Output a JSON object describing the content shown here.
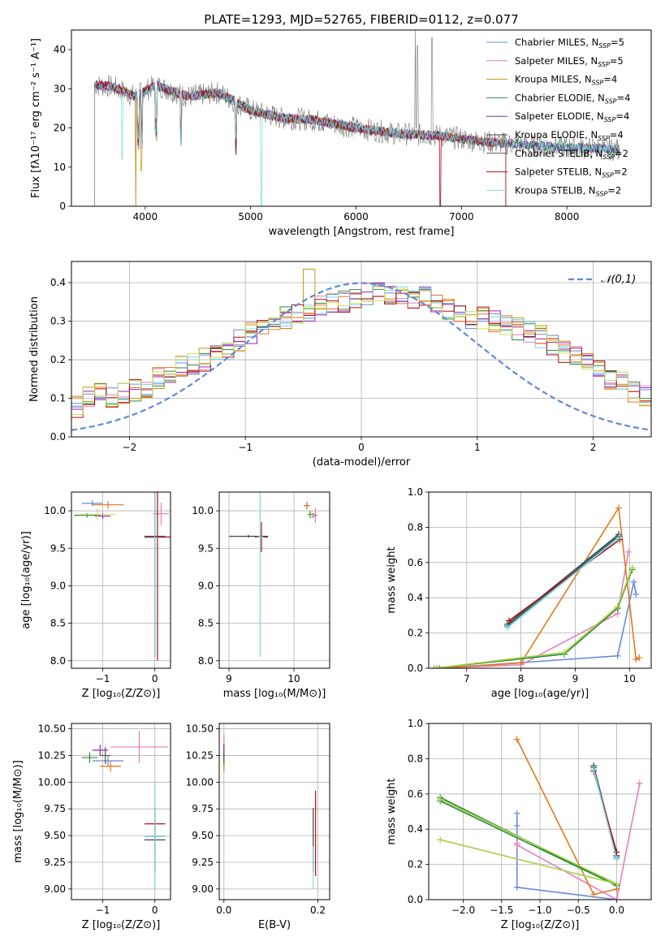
{
  "figure_title": "PLATE=1293, MJD=52765, FIBERID=0112, z=0.077",
  "model_colors": [
    "#6688dd",
    "#e67fbf",
    "#c7950a",
    "#2e8b3e",
    "#a020b0",
    "#444444",
    "#555555",
    "#b01010",
    "#7fd6e6"
  ],
  "legend_models": [
    {
      "name": "Chabrier MILES",
      "nssp": "5",
      "color": "#6688dd"
    },
    {
      "name": "Salpeter MILES",
      "nssp": "5",
      "color": "#e67fbf"
    },
    {
      "name": "Kroupa MILES",
      "nssp": "4",
      "color": "#c7950a"
    },
    {
      "name": "Chabrier ELODIE",
      "nssp": "4",
      "color": "#2e8b3e"
    },
    {
      "name": "Salpeter ELODIE",
      "nssp": "4",
      "color": "#a020b0"
    },
    {
      "name": "Kroupa ELODIE",
      "nssp": "4",
      "color": "#444444"
    },
    {
      "name": "Chabrier STELIB",
      "nssp": "2",
      "color": "#555555"
    },
    {
      "name": "Salpeter STELIB",
      "nssp": "2",
      "color": "#b01010"
    },
    {
      "name": "Kroupa STELIB",
      "nssp": "2",
      "color": "#7fd6e6"
    }
  ],
  "nssp_prefix": "N",
  "nssp_sub": "SSP",
  "chart_data": [
    {
      "id": "spectrum",
      "type": "line",
      "xlabel": "wavelength [Angstrom, rest frame]",
      "ylabel": "Flux [fλ10⁻¹⁷ erg cm⁻² s⁻¹ A⁻¹]",
      "xlim": [
        3300,
        8800
      ],
      "ylim": [
        0,
        45
      ],
      "xticks": [
        4000,
        5000,
        6000,
        7000,
        8000
      ],
      "yticks": [
        0,
        10,
        20,
        30,
        40
      ],
      "continuum": [
        [
          3520,
          31
        ],
        [
          3700,
          30.5
        ],
        [
          3900,
          28
        ],
        [
          4100,
          31
        ],
        [
          4400,
          28
        ],
        [
          4700,
          29
        ],
        [
          5000,
          24.5
        ],
        [
          5300,
          22.5
        ],
        [
          5600,
          22
        ],
        [
          6000,
          20
        ],
        [
          6400,
          18.5
        ],
        [
          6800,
          18
        ],
        [
          7200,
          16.5
        ],
        [
          7450,
          16
        ],
        [
          8000,
          15
        ],
        [
          8500,
          14.5
        ]
      ],
      "obs_lines": [
        [
          6563,
          45
        ],
        [
          6583,
          41
        ],
        [
          6720,
          43
        ]
      ],
      "grid": false,
      "legend": "top-right"
    },
    {
      "id": "residual_hist",
      "type": "histogram",
      "xlabel": "(data-model)/error",
      "ylabel": "Normed distribution",
      "xlim": [
        -2.5,
        2.5
      ],
      "ylim": [
        0,
        0.455
      ],
      "xticks": [
        -2,
        -1,
        0,
        1,
        2
      ],
      "yticks": [
        0.0,
        0.1,
        0.2,
        0.3,
        0.4
      ],
      "bin_start": -2.5,
      "bin_width": 0.1,
      "base_curve": [
        0.08,
        0.1,
        0.11,
        0.1,
        0.11,
        0.12,
        0.13,
        0.15,
        0.17,
        0.18,
        0.19,
        0.2,
        0.21,
        0.23,
        0.25,
        0.27,
        0.28,
        0.3,
        0.31,
        0.32,
        0.33,
        0.34,
        0.35,
        0.35,
        0.36,
        0.37,
        0.37,
        0.37,
        0.37,
        0.36,
        0.36,
        0.34,
        0.33,
        0.32,
        0.31,
        0.31,
        0.3,
        0.29,
        0.28,
        0.27,
        0.26,
        0.24,
        0.22,
        0.21,
        0.19,
        0.17,
        0.15,
        0.14,
        0.12,
        0.11,
        0.1,
        0.09,
        0.08,
        0.08,
        0.07,
        0.07,
        0.06,
        0.06,
        0.05,
        0.05,
        0.05,
        0.04,
        0.04,
        0.04,
        0.04,
        0.03,
        0.03,
        0.03,
        0.03,
        0.03,
        0.03,
        0.02,
        0.02,
        0.02,
        0.02,
        0.02,
        0.02,
        0.02,
        0.02,
        0.02,
        0.02,
        0.02,
        0.02,
        0.02,
        0.02,
        0.02,
        0.02,
        0.02,
        0.02,
        0.02,
        0.02,
        0.02,
        0.02,
        0.02,
        0.02,
        0.02,
        0.02,
        0.02,
        0.02,
        0.02
      ],
      "gaussian_label": "𝒩(0,1)",
      "grid": true,
      "legend": "top-right"
    },
    {
      "id": "age_vs_Z",
      "type": "errorbar",
      "xlabel": "Z [log₁₀(Z/Z⊙)]",
      "ylabel": "age  [log₁₀(age/yr)]",
      "xlim": [
        -1.6,
        0.3
      ],
      "ylim": [
        7.9,
        10.25
      ],
      "xticks": [
        -1,
        0
      ],
      "yticks": [
        8.0,
        8.5,
        9.0,
        9.5,
        10.0
      ],
      "points": [
        {
          "x": -1.2,
          "y": 10.1,
          "xe": 0.2,
          "ye": 0.04
        },
        {
          "x": 0.12,
          "y": 9.96,
          "xe": 0.15,
          "ye": 0.15
        },
        {
          "x": -0.9,
          "y": 10.08,
          "xe": 0.3,
          "ye": 0.05
        },
        {
          "x": -1.3,
          "y": 9.94,
          "xe": 0.25,
          "ye": 0.03
        },
        {
          "x": -1.0,
          "y": 9.93,
          "xe": 0.15,
          "ye": 0.04
        },
        {
          "x": -1.1,
          "y": 9.95,
          "xe": 0.35,
          "ye": 0.08
        },
        {
          "x": 0.0,
          "y": 9.66,
          "xe": 0.2,
          "ye": 1.6
        },
        {
          "x": 0.05,
          "y": 9.65,
          "xe": 0.25,
          "ye": 1.65
        },
        {
          "x": 0.0,
          "y": 9.64,
          "xe": 0.2,
          "ye": 1.6
        }
      ],
      "grid": true
    },
    {
      "id": "age_vs_mass",
      "type": "errorbar",
      "xlabel": "mass [log₁₀(M/M⊙)]",
      "ylabel": "",
      "xlim": [
        8.85,
        10.55
      ],
      "ylim": [
        7.9,
        10.25
      ],
      "xticks": [
        9,
        10
      ],
      "yticks": [
        8.0,
        8.5,
        9.0,
        9.5,
        10.0
      ],
      "points": [
        {
          "x": 10.2,
          "y": 10.07,
          "xe": 0.05,
          "ye": 0.05
        },
        {
          "x": 10.33,
          "y": 9.94,
          "xe": 0.04,
          "ye": 0.1
        },
        {
          "x": 10.2,
          "y": 10.07,
          "xe": 0.05,
          "ye": 0.05
        },
        {
          "x": 10.25,
          "y": 9.95,
          "xe": 0.04,
          "ye": 0.05
        },
        {
          "x": 10.3,
          "y": 9.94,
          "xe": 0.04,
          "ye": 0.03
        },
        {
          "x": 10.28,
          "y": 9.94,
          "xe": 0.04,
          "ye": 0.05
        },
        {
          "x": 9.3,
          "y": 9.66,
          "xe": 0.3,
          "ye": 0.02
        },
        {
          "x": 9.5,
          "y": 9.65,
          "xe": 0.1,
          "ye": 0.2
        },
        {
          "x": 9.48,
          "y": 9.65,
          "xe": 0.05,
          "ye": 1.6
        }
      ],
      "grid": true
    },
    {
      "id": "mw_vs_age",
      "type": "line",
      "xlabel": "age  [log₁₀(age/yr)]",
      "ylabel": "mass weight",
      "xlim": [
        6.3,
        10.4
      ],
      "ylim": [
        0,
        1
      ],
      "xticks": [
        7,
        8,
        9,
        10
      ],
      "yticks": [
        0.0,
        0.2,
        0.4,
        0.6,
        0.8,
        1.0
      ],
      "series": [
        {
          "x": [
            6.5,
            9.78,
            10.08,
            10.12
          ],
          "y": [
            0.0,
            0.07,
            0.49,
            0.42
          ]
        },
        {
          "x": [
            6.45,
            8.0,
            9.78,
            9.98
          ],
          "y": [
            0.0,
            0.02,
            0.31,
            0.66
          ]
        },
        {
          "x": [
            6.5,
            8.0,
            9.8,
            10.12,
            10.18
          ],
          "y": [
            0.0,
            0.03,
            0.91,
            0.05,
            0.06
          ]
        },
        {
          "x": [
            6.4,
            8.8,
            9.78,
            10.05
          ],
          "y": [
            0.0,
            0.08,
            0.34,
            0.56
          ]
        },
        {
          "x": [
            6.4,
            8.8,
            9.78,
            10.05
          ],
          "y": [
            0.0,
            0.09,
            0.35,
            0.57
          ]
        },
        {
          "x": [
            7.75,
            9.8
          ],
          "y": [
            0.25,
            0.76
          ]
        },
        {
          "x": [
            7.75,
            9.8
          ],
          "y": [
            0.24,
            0.75
          ]
        },
        {
          "x": [
            7.78,
            9.82
          ],
          "y": [
            0.27,
            0.73
          ]
        },
        {
          "x": [
            7.75,
            9.8
          ],
          "y": [
            0.23,
            0.74
          ]
        }
      ],
      "grid": true
    },
    {
      "id": "mass_vs_Z",
      "type": "errorbar",
      "xlabel": "Z [log₁₀(Z/Z⊙)]",
      "ylabel": "mass [log₁₀(M/M⊙)]",
      "xlim": [
        -1.6,
        0.3
      ],
      "ylim": [
        8.9,
        10.55
      ],
      "xticks": [
        -1,
        0
      ],
      "yticks": [
        9.0,
        9.25,
        9.5,
        9.75,
        10.0,
        10.25,
        10.5
      ],
      "points": [
        {
          "x": -0.9,
          "y": 10.2,
          "xe": 0.3,
          "ye": 0.05
        },
        {
          "x": -0.3,
          "y": 10.33,
          "xe": 0.55,
          "ye": 0.15
        },
        {
          "x": -0.85,
          "y": 10.15,
          "xe": 0.2,
          "ye": 0.05
        },
        {
          "x": -1.25,
          "y": 10.23,
          "xe": 0.15,
          "ye": 0.05
        },
        {
          "x": -1.05,
          "y": 10.3,
          "xe": 0.15,
          "ye": 0.05
        },
        {
          "x": -0.95,
          "y": 10.25,
          "xe": 0.1,
          "ye": 0.08
        },
        {
          "x": 0.0,
          "y": 9.46,
          "xe": 0.2,
          "ye": 0.3
        },
        {
          "x": 0.0,
          "y": 9.61,
          "xe": 0.2,
          "ye": 0.03
        },
        {
          "x": 0.0,
          "y": 9.49,
          "xe": 0.2,
          "ye": 0.5
        }
      ],
      "grid": true
    },
    {
      "id": "mass_vs_ebv",
      "type": "errorbar",
      "xlabel": "E(B-V)",
      "ylabel": "",
      "xlim": [
        -0.01,
        0.225
      ],
      "ylim": [
        8.9,
        10.55
      ],
      "xticks": [
        0.0,
        0.2
      ],
      "yticks": [
        9.0,
        9.25,
        9.5,
        9.75,
        10.0,
        10.25,
        10.5
      ],
      "points": [
        {
          "x": 0.0,
          "y": 10.25,
          "xe": 0.0,
          "ye": 0.05
        },
        {
          "x": 0.0,
          "y": 10.35,
          "xe": 0.0,
          "ye": 0.1
        },
        {
          "x": 0.0,
          "y": 10.15,
          "xe": 0.0,
          "ye": 0.05
        },
        {
          "x": 0.0,
          "y": 10.22,
          "xe": 0.0,
          "ye": 0.06
        },
        {
          "x": 0.0,
          "y": 10.3,
          "xe": 0.0,
          "ye": 0.06
        },
        {
          "x": 0.0,
          "y": 10.25,
          "xe": 0.0,
          "ye": 0.05
        },
        {
          "x": 0.19,
          "y": 9.46,
          "xe": 0.0,
          "ye": 0.3
        },
        {
          "x": 0.195,
          "y": 9.52,
          "xe": 0.0,
          "ye": 0.4
        },
        {
          "x": 0.19,
          "y": 9.2,
          "xe": 0.0,
          "ye": 0.2
        }
      ],
      "grid": true
    },
    {
      "id": "mw_vs_Z",
      "type": "line",
      "xlabel": "Z [log₁₀(Z/Z⊙)]",
      "ylabel": "mass weight",
      "xlim": [
        -2.45,
        0.45
      ],
      "ylim": [
        0,
        1
      ],
      "xticks": [
        -2.0,
        -1.5,
        -1.0,
        -0.5,
        0.0
      ],
      "yticks": [
        0.0,
        0.2,
        0.4,
        0.6,
        0.8,
        1.0
      ],
      "series": [
        {
          "x": [
            -1.3,
            -1.3,
            -1.3,
            0.0
          ],
          "y": [
            0.49,
            0.42,
            0.07,
            0.0
          ]
        },
        {
          "x": [
            0.3,
            0.0,
            -1.3,
            -1.3
          ],
          "y": [
            0.66,
            0.0,
            0.31,
            0.32
          ]
        },
        {
          "x": [
            -1.3,
            -0.3,
            0.0
          ],
          "y": [
            0.91,
            0.03,
            0.06
          ]
        },
        {
          "x": [
            -2.3,
            0.0,
            -2.3
          ],
          "y": [
            0.58,
            0.08,
            0.56
          ]
        },
        {
          "x": [
            -2.3,
            0.0,
            -2.3
          ],
          "y": [
            0.57,
            0.09,
            0.34
          ]
        },
        {
          "x": [
            -0.3,
            0.0
          ],
          "y": [
            0.76,
            0.25
          ]
        },
        {
          "x": [
            -0.3,
            0.0
          ],
          "y": [
            0.75,
            0.24
          ]
        },
        {
          "x": [
            -0.3,
            0.0
          ],
          "y": [
            0.73,
            0.27
          ]
        },
        {
          "x": [
            -0.3,
            0.0
          ],
          "y": [
            0.74,
            0.23
          ]
        }
      ],
      "grid": true
    }
  ]
}
